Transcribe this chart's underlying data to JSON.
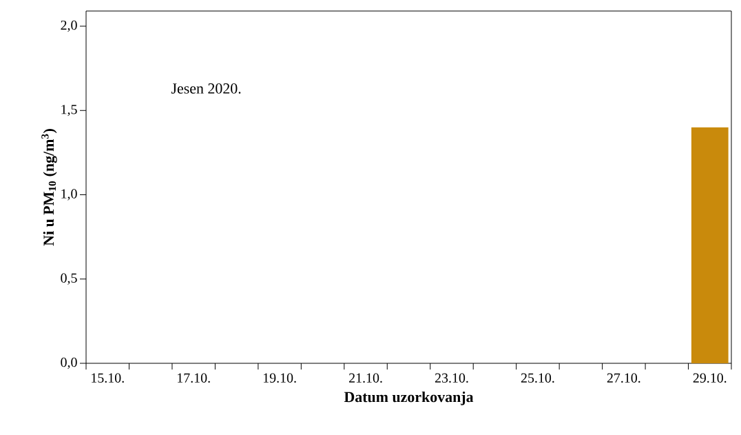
{
  "chart_data": {
    "type": "bar",
    "xlabel": "Datum uzorkovanja",
    "ylabel": "Ni u PM$_{10}$ (ng/m$^{3}$)",
    "categories": [
      "15.10.",
      null,
      "17.10.",
      null,
      "19.10.",
      null,
      "21.10.",
      null,
      "23.10.",
      null,
      "25.10.",
      null,
      "27.10.",
      null,
      "29.10."
    ],
    "values": [
      null,
      null,
      null,
      null,
      null,
      null,
      null,
      null,
      null,
      null,
      null,
      null,
      null,
      null,
      1.4
    ],
    "color": "#c98a0c",
    "ylim": [
      0,
      2.09
    ],
    "yticks": [
      {
        "value": 0,
        "label": "0,0"
      },
      {
        "value": 0.5,
        "label": "0,5"
      },
      {
        "value": 1.0,
        "label": "1,0"
      },
      {
        "value": 1.5,
        "label": "1,5"
      },
      {
        "value": 2.0,
        "label": "2,0"
      }
    ],
    "annotations": [
      "Jesen 2020."
    ]
  }
}
